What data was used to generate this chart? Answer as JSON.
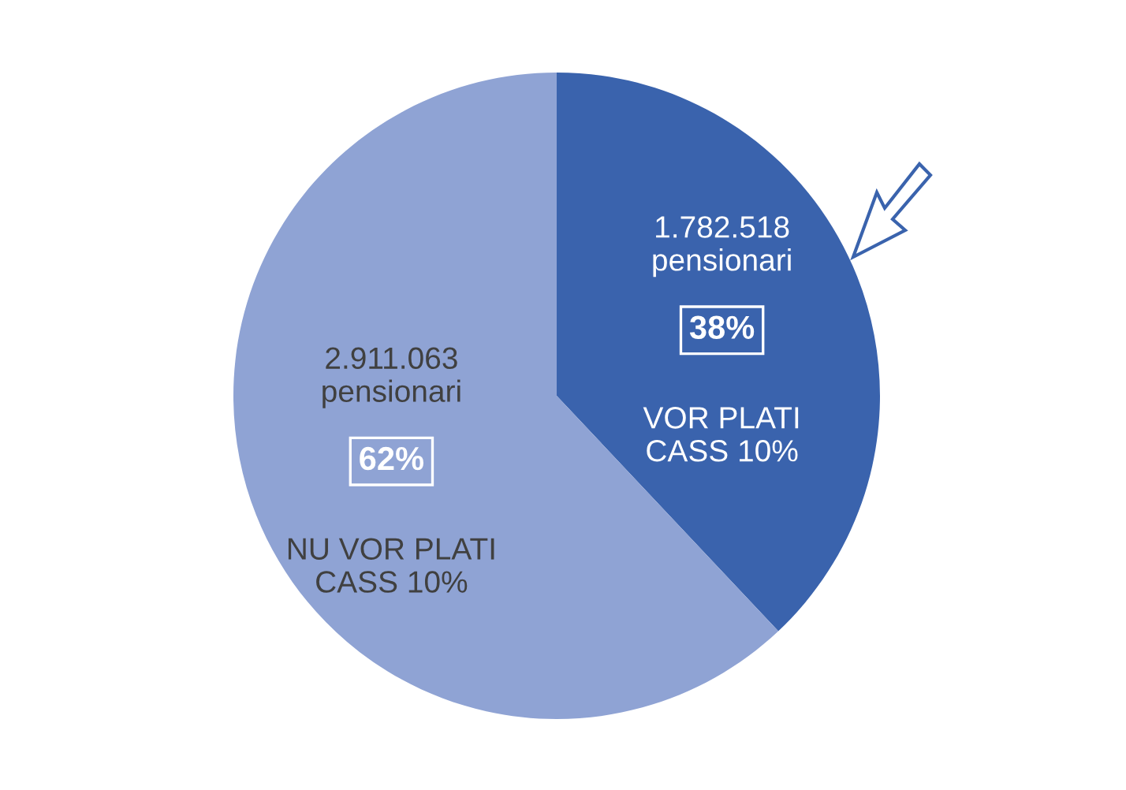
{
  "chart_data": {
    "type": "pie",
    "categories": [
      "VOR PLATI CASS 10%",
      "NU VOR PLATI CASS 10%"
    ],
    "values": [
      1782518,
      2911063
    ],
    "colors": [
      "#3a63ad",
      "#8fa3d4"
    ],
    "value_labels": [
      "1.782.518\npensionari",
      "2.911.063\npensionari"
    ],
    "annotations": [
      {
        "text": "38%",
        "x": "VOR PLATI CASS 10%"
      },
      {
        "text": "62%",
        "x": "NU VOR PLATI CASS 10%"
      }
    ],
    "legend": false
  }
}
